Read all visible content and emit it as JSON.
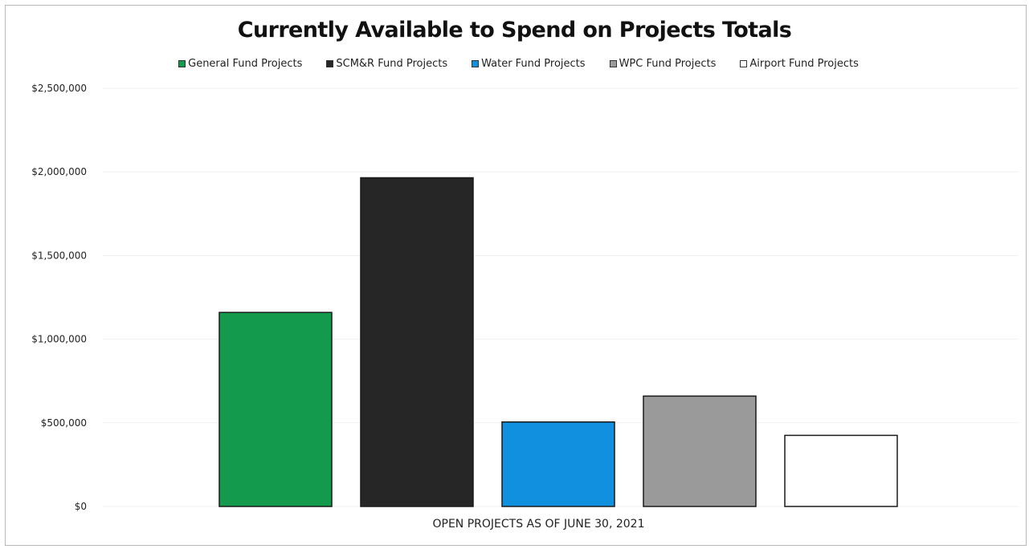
{
  "chart_data": {
    "type": "bar",
    "title": "Currently Available to Spend on Projects Totals",
    "xlabel": "OPEN PROJECTS AS OF JUNE 30, 2021",
    "ylabel": "",
    "ylim": [
      0,
      2500000
    ],
    "yticks": [
      0,
      500000,
      1000000,
      1500000,
      2000000,
      2500000
    ],
    "ytick_labels": [
      "$0",
      "$500,000",
      "$1,000,000",
      "$1,500,000",
      "$2,000,000",
      "$2,500,000"
    ],
    "grid": true,
    "legend_position": "top",
    "categories": [
      "OPEN PROJECTS AS OF JUNE 30, 2021"
    ],
    "series": [
      {
        "name": "General Fund Projects",
        "values": [
          1160000
        ],
        "color": "#139a4c"
      },
      {
        "name": "SCM&R Fund Projects",
        "values": [
          1965000
        ],
        "color": "#262626"
      },
      {
        "name": "Water Fund Projects",
        "values": [
          505000
        ],
        "color": "#1190df"
      },
      {
        "name": "WPC Fund Projects",
        "values": [
          660000
        ],
        "color": "#9a9a9a"
      },
      {
        "name": "Airport Fund Projects",
        "values": [
          425000
        ],
        "color": "#ffffff"
      }
    ]
  }
}
